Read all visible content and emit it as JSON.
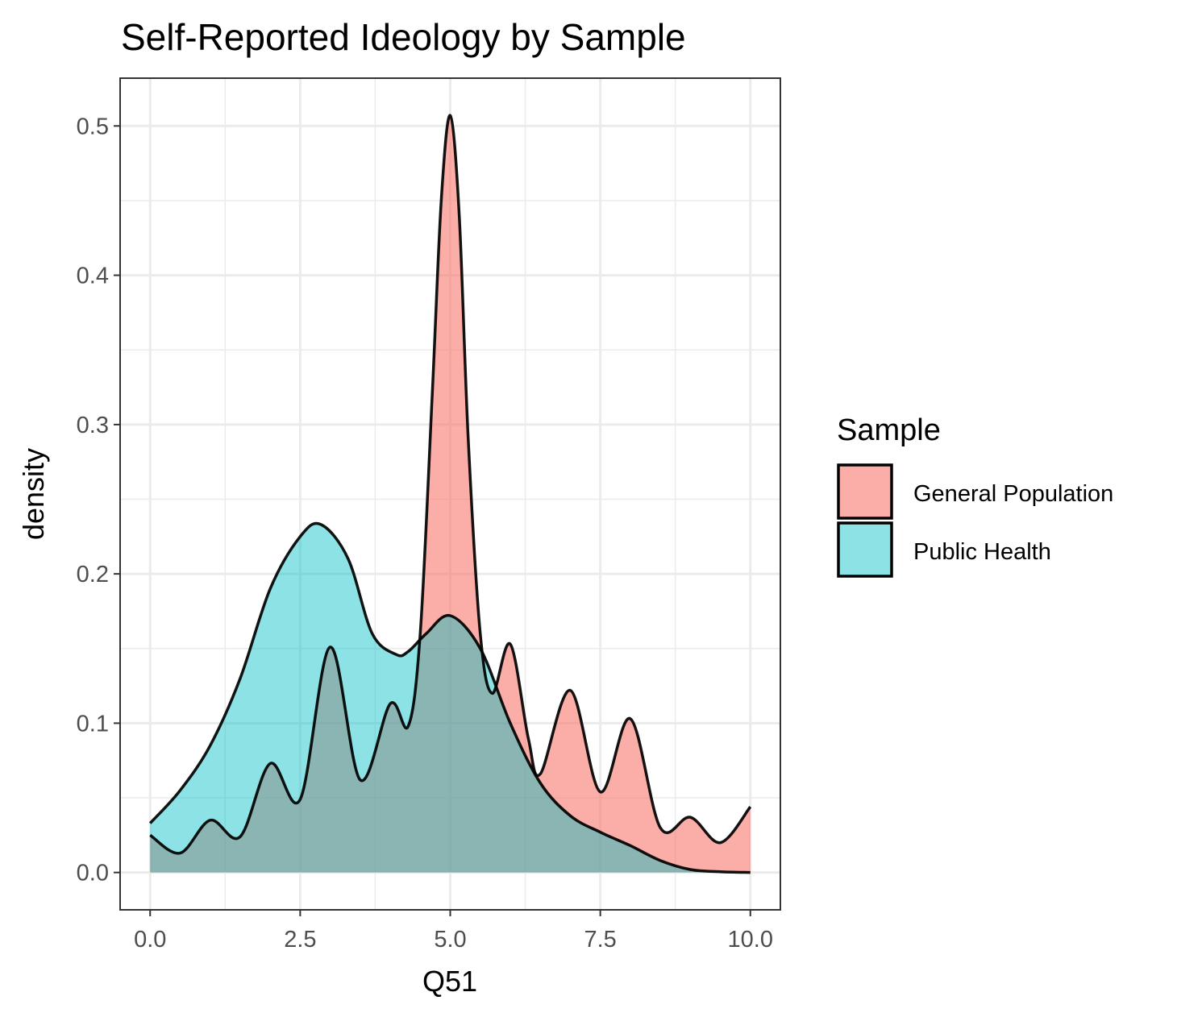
{
  "chart_data": {
    "type": "area",
    "title": "Self-Reported Ideology by Sample",
    "xlabel": "Q51",
    "ylabel": "density",
    "xlim": [
      -0.5,
      10.5
    ],
    "ylim": [
      -0.025,
      0.532
    ],
    "x_ticks": [
      0,
      2.5,
      5,
      7.5,
      10
    ],
    "x_tick_labels": [
      "0.0",
      "2.5",
      "5.0",
      "7.5",
      "10.0"
    ],
    "y_ticks": [
      0,
      0.1,
      0.2,
      0.3,
      0.4,
      0.5
    ],
    "y_tick_labels": [
      "0.0",
      "0.1",
      "0.2",
      "0.3",
      "0.4",
      "0.5"
    ],
    "grid": true,
    "legend": {
      "title": "Sample",
      "placement": "right"
    },
    "series": [
      {
        "name": "General Population",
        "color": "#F8766D",
        "fill_opacity": 0.6,
        "x": [
          0,
          0.5,
          1.0,
          1.5,
          2.0,
          2.5,
          3.0,
          3.5,
          4.0,
          4.3,
          4.5,
          4.7,
          4.85,
          5.0,
          5.15,
          5.3,
          5.5,
          5.7,
          6.0,
          6.3,
          6.5,
          7.0,
          7.5,
          8.0,
          8.5,
          9.0,
          9.5,
          10.0
        ],
        "y": [
          0.025,
          0.013,
          0.035,
          0.024,
          0.073,
          0.049,
          0.151,
          0.062,
          0.113,
          0.098,
          0.16,
          0.32,
          0.45,
          0.507,
          0.44,
          0.29,
          0.16,
          0.12,
          0.153,
          0.09,
          0.066,
          0.122,
          0.054,
          0.103,
          0.03,
          0.037,
          0.02,
          0.044
        ]
      },
      {
        "name": "Public Health",
        "color": "#00BFC4",
        "fill_opacity": 0.45,
        "x": [
          0,
          0.5,
          1.0,
          1.5,
          2.0,
          2.5,
          2.85,
          3.3,
          3.7,
          4.1,
          4.3,
          4.6,
          5.0,
          5.5,
          6.0,
          6.5,
          7.0,
          7.5,
          8.0,
          8.5,
          9.0,
          9.5,
          10.0
        ],
        "y": [
          0.033,
          0.055,
          0.085,
          0.13,
          0.19,
          0.225,
          0.233,
          0.21,
          0.16,
          0.146,
          0.148,
          0.16,
          0.172,
          0.15,
          0.1,
          0.06,
          0.038,
          0.027,
          0.018,
          0.008,
          0.002,
          0.0005,
          0.0
        ]
      }
    ]
  }
}
